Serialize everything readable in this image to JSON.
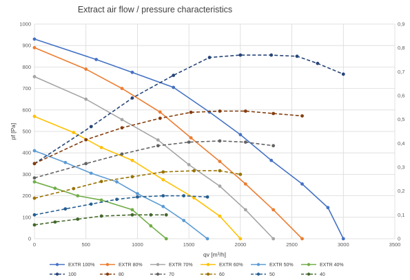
{
  "chart_data": {
    "type": "line",
    "title": "Extract air flow / pressure characteristics",
    "xlabel": "qv [m³/h]",
    "ylabel": "pf [Pa]",
    "xlim": [
      0,
      3500
    ],
    "ylim": [
      0,
      1000
    ],
    "y2lim": [
      0,
      0.9
    ],
    "x_ticks": [
      "0",
      "500",
      "1000",
      "1500",
      "2000",
      "2500",
      "3000",
      "3500"
    ],
    "y_ticks": [
      "0",
      "100",
      "200",
      "300",
      "400",
      "500",
      "600",
      "700",
      "800",
      "900",
      "1000"
    ],
    "y2_ticks": [
      "0",
      "0,1",
      "0,2",
      "0,3",
      "0,4",
      "0,5",
      "0,6",
      "0,7",
      "0,8",
      "0,9"
    ],
    "grid": true,
    "legend_position": "bottom",
    "series": [
      {
        "name": "EXTR 100%",
        "axis": "left",
        "style": "solid",
        "color": "#4472C4",
        "x": [
          0,
          600,
          950,
          1350,
          1700,
          2000,
          2300,
          2600,
          2850,
          3000
        ],
        "y": [
          930,
          835,
          775,
          705,
          590,
          485,
          365,
          255,
          145,
          0
        ]
      },
      {
        "name": "EXTR 80%",
        "axis": "left",
        "style": "solid",
        "color": "#ED7D31",
        "x": [
          0,
          500,
          850,
          1220,
          1520,
          1800,
          2050,
          2320,
          2600
        ],
        "y": [
          890,
          790,
          700,
          590,
          470,
          360,
          255,
          135,
          0
        ]
      },
      {
        "name": "EXTR 70%",
        "axis": "left",
        "style": "solid",
        "color": "#A5A5A5",
        "x": [
          0,
          500,
          850,
          1200,
          1500,
          1800,
          2050,
          2320
        ],
        "y": [
          755,
          650,
          555,
          460,
          345,
          245,
          135,
          0
        ]
      },
      {
        "name": "EXTR 60%",
        "axis": "left",
        "style": "solid",
        "color": "#FFC000",
        "x": [
          0,
          380,
          650,
          950,
          1250,
          1550,
          1800,
          2000
        ],
        "y": [
          570,
          495,
          425,
          365,
          275,
          190,
          105,
          0
        ]
      },
      {
        "name": "EXTR 50%",
        "axis": "left",
        "style": "solid",
        "color": "#5B9BD5",
        "x": [
          0,
          300,
          550,
          800,
          1000,
          1250,
          1450,
          1680
        ],
        "y": [
          410,
          355,
          305,
          265,
          210,
          150,
          85,
          0
        ]
      },
      {
        "name": "EXTR 40%",
        "axis": "left",
        "style": "solid",
        "color": "#70AD47",
        "x": [
          0,
          200,
          420,
          650,
          950,
          1130,
          1280
        ],
        "y": [
          265,
          235,
          200,
          180,
          135,
          60,
          0
        ]
      },
      {
        "name": "100",
        "axis": "right",
        "style": "dashed",
        "color": "#264478",
        "x": [
          0,
          550,
          950,
          1350,
          1700,
          2000,
          2300,
          2550,
          2750,
          3000
        ],
        "y": [
          0.315,
          0.47,
          0.59,
          0.685,
          0.76,
          0.77,
          0.77,
          0.765,
          0.735,
          0.69
        ]
      },
      {
        "name": "80",
        "axis": "right",
        "style": "dashed",
        "color": "#843C0C",
        "x": [
          0,
          500,
          850,
          1220,
          1520,
          1800,
          2050,
          2320,
          2600
        ],
        "y": [
          0.315,
          0.415,
          0.465,
          0.505,
          0.53,
          0.535,
          0.535,
          0.525,
          0.515
        ]
      },
      {
        "name": "70",
        "axis": "right",
        "style": "dashed",
        "color": "#636363",
        "x": [
          0,
          500,
          850,
          1200,
          1500,
          1800,
          2050,
          2320
        ],
        "y": [
          0.255,
          0.315,
          0.355,
          0.39,
          0.405,
          0.41,
          0.405,
          0.39
        ]
      },
      {
        "name": "60",
        "axis": "right",
        "style": "dashed",
        "color": "#997300",
        "x": [
          0,
          380,
          650,
          950,
          1250,
          1550,
          1800,
          2000
        ],
        "y": [
          0.17,
          0.21,
          0.24,
          0.26,
          0.28,
          0.285,
          0.285,
          0.27
        ]
      },
      {
        "name": "50",
        "axis": "right",
        "style": "dashed",
        "color": "#255E91",
        "x": [
          0,
          300,
          550,
          800,
          1000,
          1250,
          1450,
          1680
        ],
        "y": [
          0.1,
          0.125,
          0.145,
          0.165,
          0.175,
          0.18,
          0.18,
          0.175
        ]
      },
      {
        "name": "40",
        "axis": "right",
        "style": "dashed",
        "color": "#43682B",
        "x": [
          0,
          200,
          420,
          650,
          950,
          1130,
          1280
        ],
        "y": [
          0.058,
          0.07,
          0.082,
          0.095,
          0.1,
          0.1,
          0.1
        ]
      }
    ]
  }
}
